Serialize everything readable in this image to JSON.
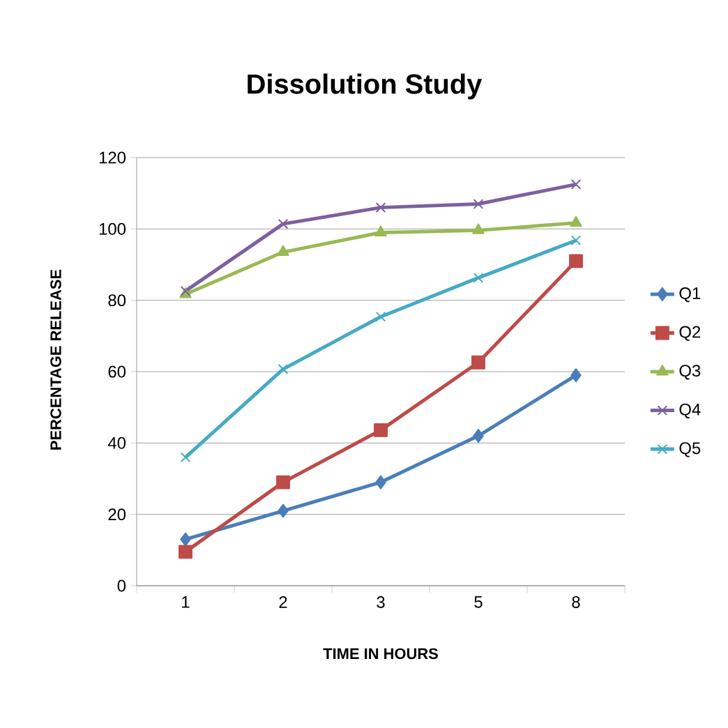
{
  "chart_data": {
    "type": "line",
    "title": "Dissolution Study",
    "xlabel": "TIME IN HOURS",
    "ylabel": "PERCENTAGE RELEASE",
    "categories": [
      "1",
      "2",
      "3",
      "5",
      "8"
    ],
    "ylim": [
      0,
      120
    ],
    "yticks": [
      0,
      20,
      40,
      60,
      80,
      100,
      120
    ],
    "grid": "y",
    "legend": "right",
    "line_style": "solid",
    "series": [
      {
        "name": "Q1",
        "color": "#4a7ebb",
        "marker": "diamond",
        "values": [
          13,
          21,
          29,
          42,
          59
        ]
      },
      {
        "name": "Q2",
        "color": "#be4b48",
        "marker": "square",
        "values": [
          9.5,
          29,
          43.6,
          62.6,
          91
        ]
      },
      {
        "name": "Q3",
        "color": "#98b954",
        "marker": "triangle",
        "values": [
          81.7,
          93.5,
          99,
          99.6,
          101.7
        ]
      },
      {
        "name": "Q4",
        "color": "#7d60a0",
        "marker": "cross",
        "values": [
          82.6,
          101.4,
          106,
          107,
          112.5
        ]
      },
      {
        "name": "Q5",
        "color": "#46aac5",
        "marker": "cross",
        "values": [
          36,
          60.7,
          75.4,
          86.3,
          96.8
        ]
      }
    ]
  }
}
